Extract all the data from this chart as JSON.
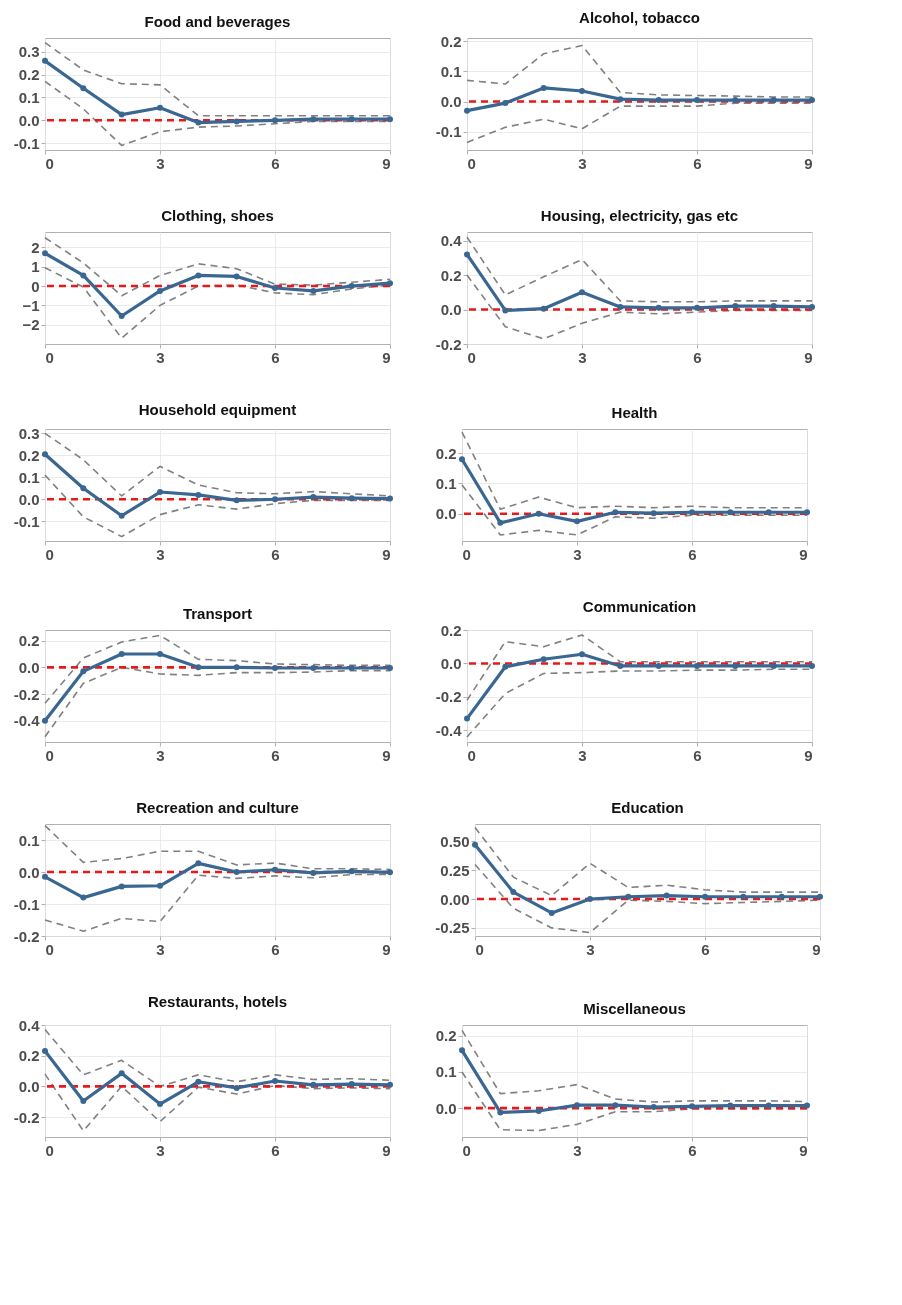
{
  "chart_data": [
    {
      "type": "line",
      "title": "Food and beverages",
      "x": [
        0,
        1,
        2,
        3,
        4,
        5,
        6,
        7,
        8,
        9
      ],
      "xlim": [
        0,
        9
      ],
      "xticks": [
        0,
        3,
        6,
        9
      ],
      "ylim": [
        -0.13,
        0.36
      ],
      "yticks": [
        {
          "value": -0.1,
          "label": "-0.1"
        },
        {
          "value": 0,
          "label": "0.0"
        },
        0.1,
        0.2,
        0.3
      ],
      "grid": true,
      "ref_lines": [
        {
          "axis": "y",
          "value": 0,
          "color": "#e41a1c",
          "line_style": "dashed"
        }
      ],
      "series": [
        {
          "color": "#808080",
          "line_style": "dashed",
          "marker": "none",
          "values": [
            0.34,
            0.22,
            0.16,
            0.155,
            0.02,
            0.02,
            0.02,
            0.02,
            0.02,
            0.02
          ]
        },
        {
          "color": "#808080",
          "line_style": "dashed",
          "marker": "none",
          "values": [
            0.17,
            0.05,
            -0.11,
            -0.05,
            -0.03,
            -0.025,
            -0.015,
            -0.005,
            -0.005,
            -0.005
          ]
        },
        {
          "color": "#3a6791",
          "line_style": "solid",
          "marker": "circle",
          "values": [
            0.26,
            0.14,
            0.025,
            0.055,
            -0.01,
            -0.005,
            0,
            0.005,
            0.005,
            0.005
          ]
        }
      ]
    },
    {
      "type": "line",
      "title": "Alcohol, tobacco",
      "x": [
        0,
        1,
        2,
        3,
        4,
        5,
        6,
        7,
        8,
        9
      ],
      "xlim": [
        0,
        9
      ],
      "xticks": [
        0,
        3,
        6,
        9
      ],
      "ylim": [
        -0.16,
        0.21
      ],
      "yticks": [
        {
          "value": -0.1,
          "label": "-0.1"
        },
        {
          "value": 0,
          "label": "0.0"
        },
        0.1,
        0.2
      ],
      "grid": true,
      "ref_lines": [
        {
          "axis": "y",
          "value": 0,
          "color": "#e41a1c",
          "line_style": "dashed"
        }
      ],
      "series": [
        {
          "color": "#808080",
          "line_style": "dashed",
          "marker": "none",
          "values": [
            0.07,
            0.058,
            0.158,
            0.185,
            0.03,
            0.022,
            0.02,
            0.018,
            0.015,
            0.015
          ]
        },
        {
          "color": "#808080",
          "line_style": "dashed",
          "marker": "none",
          "values": [
            -0.135,
            -0.085,
            -0.058,
            -0.09,
            -0.015,
            -0.015,
            -0.015,
            -0.005,
            -0.005,
            -0.005
          ]
        },
        {
          "color": "#3a6791",
          "line_style": "solid",
          "marker": "circle",
          "values": [
            -0.03,
            -0.005,
            0.045,
            0.035,
            0.008,
            0.005,
            0.005,
            0.005,
            0.005,
            0.005
          ]
        }
      ]
    },
    {
      "type": "line",
      "title": "Clothing, shoes",
      "x": [
        0,
        1,
        2,
        3,
        4,
        5,
        6,
        7,
        8,
        9
      ],
      "xlim": [
        0,
        9
      ],
      "xticks": [
        0,
        3,
        6,
        9
      ],
      "ylim": [
        -3,
        2.8
      ],
      "yticks": [
        -2,
        -1,
        0,
        1,
        2
      ],
      "grid": true,
      "ref_lines": [
        {
          "axis": "y",
          "value": 0,
          "color": "#e41a1c",
          "line_style": "dashed"
        }
      ],
      "series": [
        {
          "color": "#808080",
          "line_style": "dashed",
          "marker": "none",
          "values": [
            2.5,
            1.2,
            -0.5,
            0.55,
            1.15,
            0.9,
            0.1,
            0.05,
            0.2,
            0.35
          ]
        },
        {
          "color": "#808080",
          "line_style": "dashed",
          "marker": "none",
          "values": [
            0.95,
            -0.05,
            -2.7,
            -1.0,
            0.0,
            0.05,
            -0.35,
            -0.45,
            -0.15,
            0.05
          ]
        },
        {
          "color": "#3a6791",
          "line_style": "solid",
          "marker": "circle",
          "values": [
            1.7,
            0.55,
            -1.55,
            -0.25,
            0.55,
            0.5,
            -0.1,
            -0.25,
            0.0,
            0.15
          ]
        }
      ]
    },
    {
      "type": "line",
      "title": "Housing, electricity, gas etc",
      "x": [
        0,
        1,
        2,
        3,
        4,
        5,
        6,
        7,
        8,
        9
      ],
      "xlim": [
        0,
        9
      ],
      "xticks": [
        0,
        3,
        6,
        9
      ],
      "ylim": [
        -0.2,
        0.45
      ],
      "yticks": [
        {
          "value": -0.2,
          "label": "-0.2"
        },
        {
          "value": 0,
          "label": "0.0"
        },
        0.2,
        0.4
      ],
      "grid": true,
      "ref_lines": [
        {
          "axis": "y",
          "value": 0,
          "color": "#e41a1c",
          "line_style": "dashed"
        }
      ],
      "series": [
        {
          "color": "#808080",
          "line_style": "dashed",
          "marker": "none",
          "values": [
            0.42,
            0.085,
            0.19,
            0.29,
            0.05,
            0.045,
            0.045,
            0.05,
            0.05,
            0.05
          ]
        },
        {
          "color": "#808080",
          "line_style": "dashed",
          "marker": "none",
          "values": [
            0.2,
            -0.1,
            -0.17,
            -0.08,
            -0.015,
            -0.025,
            -0.015,
            -0.005,
            -0.005,
            -0.005
          ]
        },
        {
          "color": "#3a6791",
          "line_style": "solid",
          "marker": "circle",
          "values": [
            0.32,
            -0.005,
            0.005,
            0.1,
            0.015,
            0.01,
            0.01,
            0.02,
            0.02,
            0.015
          ]
        }
      ]
    },
    {
      "type": "line",
      "title": "Household equipment",
      "x": [
        0,
        1,
        2,
        3,
        4,
        5,
        6,
        7,
        8,
        9
      ],
      "xlim": [
        0,
        9
      ],
      "xticks": [
        0,
        3,
        6,
        9
      ],
      "ylim": [
        -0.19,
        0.32
      ],
      "yticks": [
        {
          "value": -0.1,
          "label": "-0.1"
        },
        {
          "value": 0,
          "label": "0.0"
        },
        0.1,
        0.2,
        0.3
      ],
      "grid": true,
      "ref_lines": [
        {
          "axis": "y",
          "value": 0,
          "color": "#e41a1c",
          "line_style": "dashed"
        }
      ],
      "series": [
        {
          "color": "#808080",
          "line_style": "dashed",
          "marker": "none",
          "values": [
            0.3,
            0.18,
            0.015,
            0.15,
            0.065,
            0.03,
            0.025,
            0.035,
            0.025,
            0.015
          ]
        },
        {
          "color": "#808080",
          "line_style": "dashed",
          "marker": "none",
          "values": [
            0.11,
            -0.08,
            -0.17,
            -0.07,
            -0.025,
            -0.045,
            -0.02,
            -0.005,
            -0.005,
            -0.005
          ]
        },
        {
          "color": "#3a6791",
          "line_style": "solid",
          "marker": "circle",
          "values": [
            0.205,
            0.05,
            -0.075,
            0.033,
            0.02,
            -0.005,
            0,
            0.01,
            0.005,
            0.003
          ]
        }
      ]
    },
    {
      "type": "line",
      "title": "Health",
      "x": [
        0,
        1,
        2,
        3,
        4,
        5,
        6,
        7,
        8,
        9
      ],
      "xlim": [
        0,
        9
      ],
      "xticks": [
        0,
        3,
        6,
        9
      ],
      "ylim": [
        -0.09,
        0.28
      ],
      "yticks": [
        {
          "value": 0,
          "label": "0.0"
        },
        0.1,
        0.2
      ],
      "grid": true,
      "ref_lines": [
        {
          "axis": "y",
          "value": 0,
          "color": "#e41a1c",
          "line_style": "dashed"
        }
      ],
      "series": [
        {
          "color": "#808080",
          "line_style": "dashed",
          "marker": "none",
          "values": [
            0.27,
            0.015,
            0.055,
            0.02,
            0.025,
            0.02,
            0.025,
            0.02,
            0.02,
            0.02
          ]
        },
        {
          "color": "#808080",
          "line_style": "dashed",
          "marker": "none",
          "values": [
            0.095,
            -0.07,
            -0.055,
            -0.07,
            -0.01,
            -0.015,
            -0.005,
            -0.005,
            -0.005,
            -0.005
          ]
        },
        {
          "color": "#3a6791",
          "line_style": "solid",
          "marker": "circle",
          "values": [
            0.18,
            -0.03,
            0.0,
            -0.025,
            0.005,
            0.002,
            0.005,
            0.005,
            0.005,
            0.005
          ]
        }
      ]
    },
    {
      "type": "line",
      "title": "Transport",
      "x": [
        0,
        1,
        2,
        3,
        4,
        5,
        6,
        7,
        8,
        9
      ],
      "xlim": [
        0,
        9
      ],
      "xticks": [
        0,
        3,
        6,
        9
      ],
      "ylim": [
        -0.56,
        0.28
      ],
      "yticks": [
        {
          "value": -0.4,
          "label": "-0.4"
        },
        {
          "value": -0.2,
          "label": "-0.2"
        },
        {
          "value": 0,
          "label": "0.0"
        },
        0.2
      ],
      "grid": true,
      "ref_lines": [
        {
          "axis": "y",
          "value": 0,
          "color": "#e41a1c",
          "line_style": "dashed"
        }
      ],
      "series": [
        {
          "color": "#808080",
          "line_style": "dashed",
          "marker": "none",
          "values": [
            -0.27,
            0.07,
            0.19,
            0.24,
            0.06,
            0.05,
            0.025,
            0.02,
            0.015,
            0.015
          ]
        },
        {
          "color": "#808080",
          "line_style": "dashed",
          "marker": "none",
          "values": [
            -0.52,
            -0.12,
            0.0,
            -0.05,
            -0.06,
            -0.04,
            -0.04,
            -0.035,
            -0.025,
            -0.025
          ]
        },
        {
          "color": "#3a6791",
          "line_style": "solid",
          "marker": "circle",
          "values": [
            -0.4,
            -0.03,
            0.1,
            0.1,
            0.0,
            0.0,
            -0.005,
            -0.005,
            -0.005,
            -0.005
          ]
        }
      ]
    },
    {
      "type": "line",
      "title": "Communication",
      "x": [
        0,
        1,
        2,
        3,
        4,
        5,
        6,
        7,
        8,
        9
      ],
      "xlim": [
        0,
        9
      ],
      "xticks": [
        0,
        3,
        6,
        9
      ],
      "ylim": [
        -0.47,
        0.2
      ],
      "yticks": [
        {
          "value": -0.4,
          "label": "-0.4"
        },
        {
          "value": -0.2,
          "label": "-0.2"
        },
        {
          "value": 0,
          "label": "0.0"
        },
        0.2
      ],
      "grid": true,
      "ref_lines": [
        {
          "axis": "y",
          "value": 0,
          "color": "#e41a1c",
          "line_style": "dashed"
        }
      ],
      "series": [
        {
          "color": "#808080",
          "line_style": "dashed",
          "marker": "none",
          "values": [
            -0.22,
            0.13,
            0.1,
            0.17,
            0.01,
            0.01,
            0.01,
            0.01,
            0.01,
            0.01
          ]
        },
        {
          "color": "#808080",
          "line_style": "dashed",
          "marker": "none",
          "values": [
            -0.44,
            -0.18,
            -0.06,
            -0.055,
            -0.045,
            -0.045,
            -0.04,
            -0.04,
            -0.035,
            -0.035
          ]
        },
        {
          "color": "#3a6791",
          "line_style": "solid",
          "marker": "circle",
          "values": [
            -0.33,
            -0.02,
            0.025,
            0.055,
            -0.015,
            -0.015,
            -0.015,
            -0.015,
            -0.015,
            -0.015
          ]
        }
      ]
    },
    {
      "type": "line",
      "title": "Recreation and culture",
      "x": [
        0,
        1,
        2,
        3,
        4,
        5,
        6,
        7,
        8,
        9
      ],
      "xlim": [
        0,
        9
      ],
      "xticks": [
        0,
        3,
        6,
        9
      ],
      "ylim": [
        -0.2,
        0.15
      ],
      "yticks": [
        {
          "value": -0.2,
          "label": "-0.2"
        },
        {
          "value": -0.1,
          "label": "-0.1"
        },
        {
          "value": 0,
          "label": "0.0"
        },
        0.1
      ],
      "grid": true,
      "ref_lines": [
        {
          "axis": "y",
          "value": 0,
          "color": "#e41a1c",
          "line_style": "dashed"
        }
      ],
      "series": [
        {
          "color": "#808080",
          "line_style": "dashed",
          "marker": "none",
          "values": [
            0.145,
            0.03,
            0.042,
            0.065,
            0.065,
            0.022,
            0.028,
            0.01,
            0.01,
            0.008
          ]
        },
        {
          "color": "#808080",
          "line_style": "dashed",
          "marker": "none",
          "values": [
            -0.15,
            -0.185,
            -0.145,
            -0.155,
            -0.01,
            -0.02,
            -0.012,
            -0.018,
            -0.008,
            -0.008
          ]
        },
        {
          "color": "#3a6791",
          "line_style": "solid",
          "marker": "circle",
          "values": [
            -0.015,
            -0.08,
            -0.045,
            -0.043,
            0.027,
            0.0,
            0.007,
            -0.003,
            0.002,
            -0.001
          ]
        }
      ]
    },
    {
      "type": "line",
      "title": "Education",
      "x": [
        0,
        1,
        2,
        3,
        4,
        5,
        6,
        7,
        8,
        9
      ],
      "xlim": [
        0,
        9
      ],
      "xticks": [
        0,
        3,
        6,
        9
      ],
      "ylim": [
        -0.32,
        0.65
      ],
      "yticks": [
        {
          "value": -0.25,
          "label": "-0.25"
        },
        {
          "value": 0,
          "label": "0.00"
        },
        {
          "value": 0.25,
          "label": "0.25"
        },
        {
          "value": 0.5,
          "label": "0.50"
        }
      ],
      "grid": true,
      "ref_lines": [
        {
          "axis": "y",
          "value": 0,
          "color": "#e41a1c",
          "line_style": "dashed"
        }
      ],
      "series": [
        {
          "color": "#808080",
          "line_style": "dashed",
          "marker": "none",
          "values": [
            0.62,
            0.19,
            0.03,
            0.31,
            0.1,
            0.12,
            0.08,
            0.06,
            0.06,
            0.06
          ]
        },
        {
          "color": "#808080",
          "line_style": "dashed",
          "marker": "none",
          "values": [
            0.3,
            -0.08,
            -0.25,
            -0.29,
            -0.01,
            -0.02,
            -0.04,
            -0.03,
            -0.02,
            -0.01
          ]
        },
        {
          "color": "#3a6791",
          "line_style": "solid",
          "marker": "circle",
          "values": [
            0.47,
            0.06,
            -0.12,
            0.0,
            0.02,
            0.03,
            0.02,
            0.02,
            0.02,
            0.02
          ]
        }
      ]
    },
    {
      "type": "line",
      "title": "Restaurants, hotels",
      "x": [
        0,
        1,
        2,
        3,
        4,
        5,
        6,
        7,
        8,
        9
      ],
      "xlim": [
        0,
        9
      ],
      "xticks": [
        0,
        3,
        6,
        9
      ],
      "ylim": [
        -0.33,
        0.4
      ],
      "yticks": [
        {
          "value": -0.2,
          "label": "-0.2"
        },
        {
          "value": 0,
          "label": "0.0"
        },
        0.2,
        0.4
      ],
      "grid": true,
      "ref_lines": [
        {
          "axis": "y",
          "value": 0,
          "color": "#e41a1c",
          "line_style": "dashed"
        }
      ],
      "series": [
        {
          "color": "#808080",
          "line_style": "dashed",
          "marker": "none",
          "values": [
            0.37,
            0.075,
            0.17,
            0.0,
            0.075,
            0.03,
            0.075,
            0.045,
            0.05,
            0.04
          ]
        },
        {
          "color": "#808080",
          "line_style": "dashed",
          "marker": "none",
          "values": [
            0.08,
            -0.29,
            0.0,
            -0.23,
            -0.005,
            -0.05,
            0.005,
            -0.015,
            -0.01,
            -0.015
          ]
        },
        {
          "color": "#3a6791",
          "line_style": "solid",
          "marker": "circle",
          "values": [
            0.23,
            -0.095,
            0.085,
            -0.115,
            0.03,
            -0.01,
            0.035,
            0.01,
            0.015,
            0.01
          ]
        }
      ]
    },
    {
      "type": "line",
      "title": "Miscellaneous",
      "x": [
        0,
        1,
        2,
        3,
        4,
        5,
        6,
        7,
        8,
        9
      ],
      "xlim": [
        0,
        9
      ],
      "xticks": [
        0,
        3,
        6,
        9
      ],
      "ylim": [
        -0.08,
        0.23
      ],
      "yticks": [
        {
          "value": 0,
          "label": "0.0"
        },
        0.1,
        0.2
      ],
      "grid": true,
      "ref_lines": [
        {
          "axis": "y",
          "value": 0,
          "color": "#e41a1c",
          "line_style": "dashed"
        }
      ],
      "series": [
        {
          "color": "#808080",
          "line_style": "dashed",
          "marker": "none",
          "values": [
            0.215,
            0.04,
            0.048,
            0.065,
            0.025,
            0.017,
            0.02,
            0.02,
            0.02,
            0.018
          ]
        },
        {
          "color": "#808080",
          "line_style": "dashed",
          "marker": "none",
          "values": [
            0.1,
            -0.06,
            -0.062,
            -0.045,
            -0.01,
            -0.01,
            -0.002,
            -0.002,
            -0.002,
            -0.002
          ]
        },
        {
          "color": "#3a6791",
          "line_style": "solid",
          "marker": "circle",
          "values": [
            0.16,
            -0.012,
            -0.008,
            0.008,
            0.008,
            0.003,
            0.005,
            0.007,
            0.007,
            0.007
          ]
        }
      ]
    }
  ]
}
